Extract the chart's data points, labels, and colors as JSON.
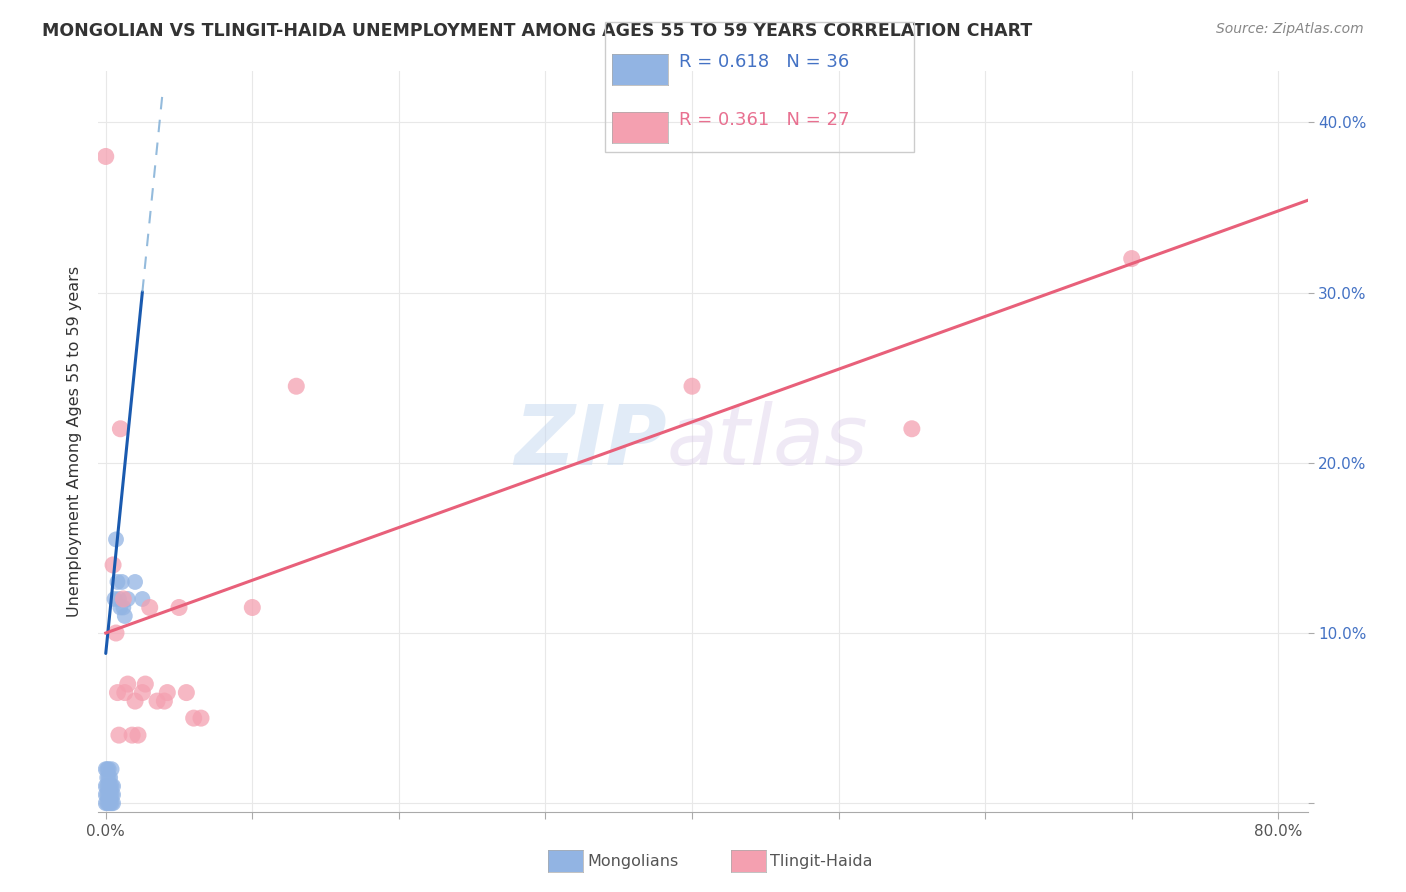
{
  "title": "MONGOLIAN VS TLINGIT-HAIDA UNEMPLOYMENT AMONG AGES 55 TO 59 YEARS CORRELATION CHART",
  "source": "Source: ZipAtlas.com",
  "ylabel": "Unemployment Among Ages 55 to 59 years",
  "xlim": [
    -0.005,
    0.82
  ],
  "ylim": [
    -0.005,
    0.43
  ],
  "xticks": [
    0.0,
    0.1,
    0.2,
    0.3,
    0.4,
    0.5,
    0.6,
    0.7,
    0.8
  ],
  "yticks": [
    0.0,
    0.1,
    0.2,
    0.3,
    0.4
  ],
  "mongolian_R": 0.618,
  "mongolian_N": 36,
  "tlingit_R": 0.361,
  "tlingit_N": 27,
  "mongolian_color": "#92b4e3",
  "tlingit_color": "#f4a0b0",
  "mongolian_line_color": "#1a5aaf",
  "tlingit_line_color": "#e8607a",
  "watermark_zip": "ZIP",
  "watermark_atlas": "atlas",
  "mongolian_x": [
    0.0,
    0.0,
    0.0,
    0.0,
    0.001,
    0.001,
    0.001,
    0.001,
    0.001,
    0.002,
    0.002,
    0.002,
    0.002,
    0.002,
    0.003,
    0.003,
    0.003,
    0.003,
    0.004,
    0.004,
    0.004,
    0.004,
    0.005,
    0.005,
    0.005,
    0.006,
    0.007,
    0.008,
    0.009,
    0.01,
    0.011,
    0.012,
    0.013,
    0.015,
    0.02,
    0.025
  ],
  "mongolian_y": [
    0.0,
    0.005,
    0.01,
    0.02,
    0.0,
    0.005,
    0.01,
    0.015,
    0.02,
    0.0,
    0.005,
    0.01,
    0.015,
    0.02,
    0.0,
    0.005,
    0.01,
    0.015,
    0.0,
    0.005,
    0.01,
    0.02,
    0.0,
    0.005,
    0.01,
    0.12,
    0.155,
    0.13,
    0.12,
    0.115,
    0.13,
    0.115,
    0.11,
    0.12,
    0.13,
    0.12
  ],
  "tlingit_x": [
    0.0,
    0.005,
    0.007,
    0.008,
    0.009,
    0.01,
    0.012,
    0.013,
    0.015,
    0.018,
    0.02,
    0.022,
    0.025,
    0.027,
    0.03,
    0.035,
    0.04,
    0.042,
    0.05,
    0.055,
    0.06,
    0.065,
    0.1,
    0.13,
    0.4,
    0.55,
    0.7
  ],
  "tlingit_y": [
    0.38,
    0.14,
    0.1,
    0.065,
    0.04,
    0.22,
    0.12,
    0.065,
    0.07,
    0.04,
    0.06,
    0.04,
    0.065,
    0.07,
    0.115,
    0.06,
    0.06,
    0.065,
    0.115,
    0.065,
    0.05,
    0.05,
    0.115,
    0.245,
    0.245,
    0.22,
    0.32
  ],
  "background_color": "#ffffff",
  "grid_color": "#e8e8e8",
  "mon_slope": 8.5,
  "mon_intercept": 0.088,
  "tl_slope": 0.31,
  "tl_intercept": 0.1
}
